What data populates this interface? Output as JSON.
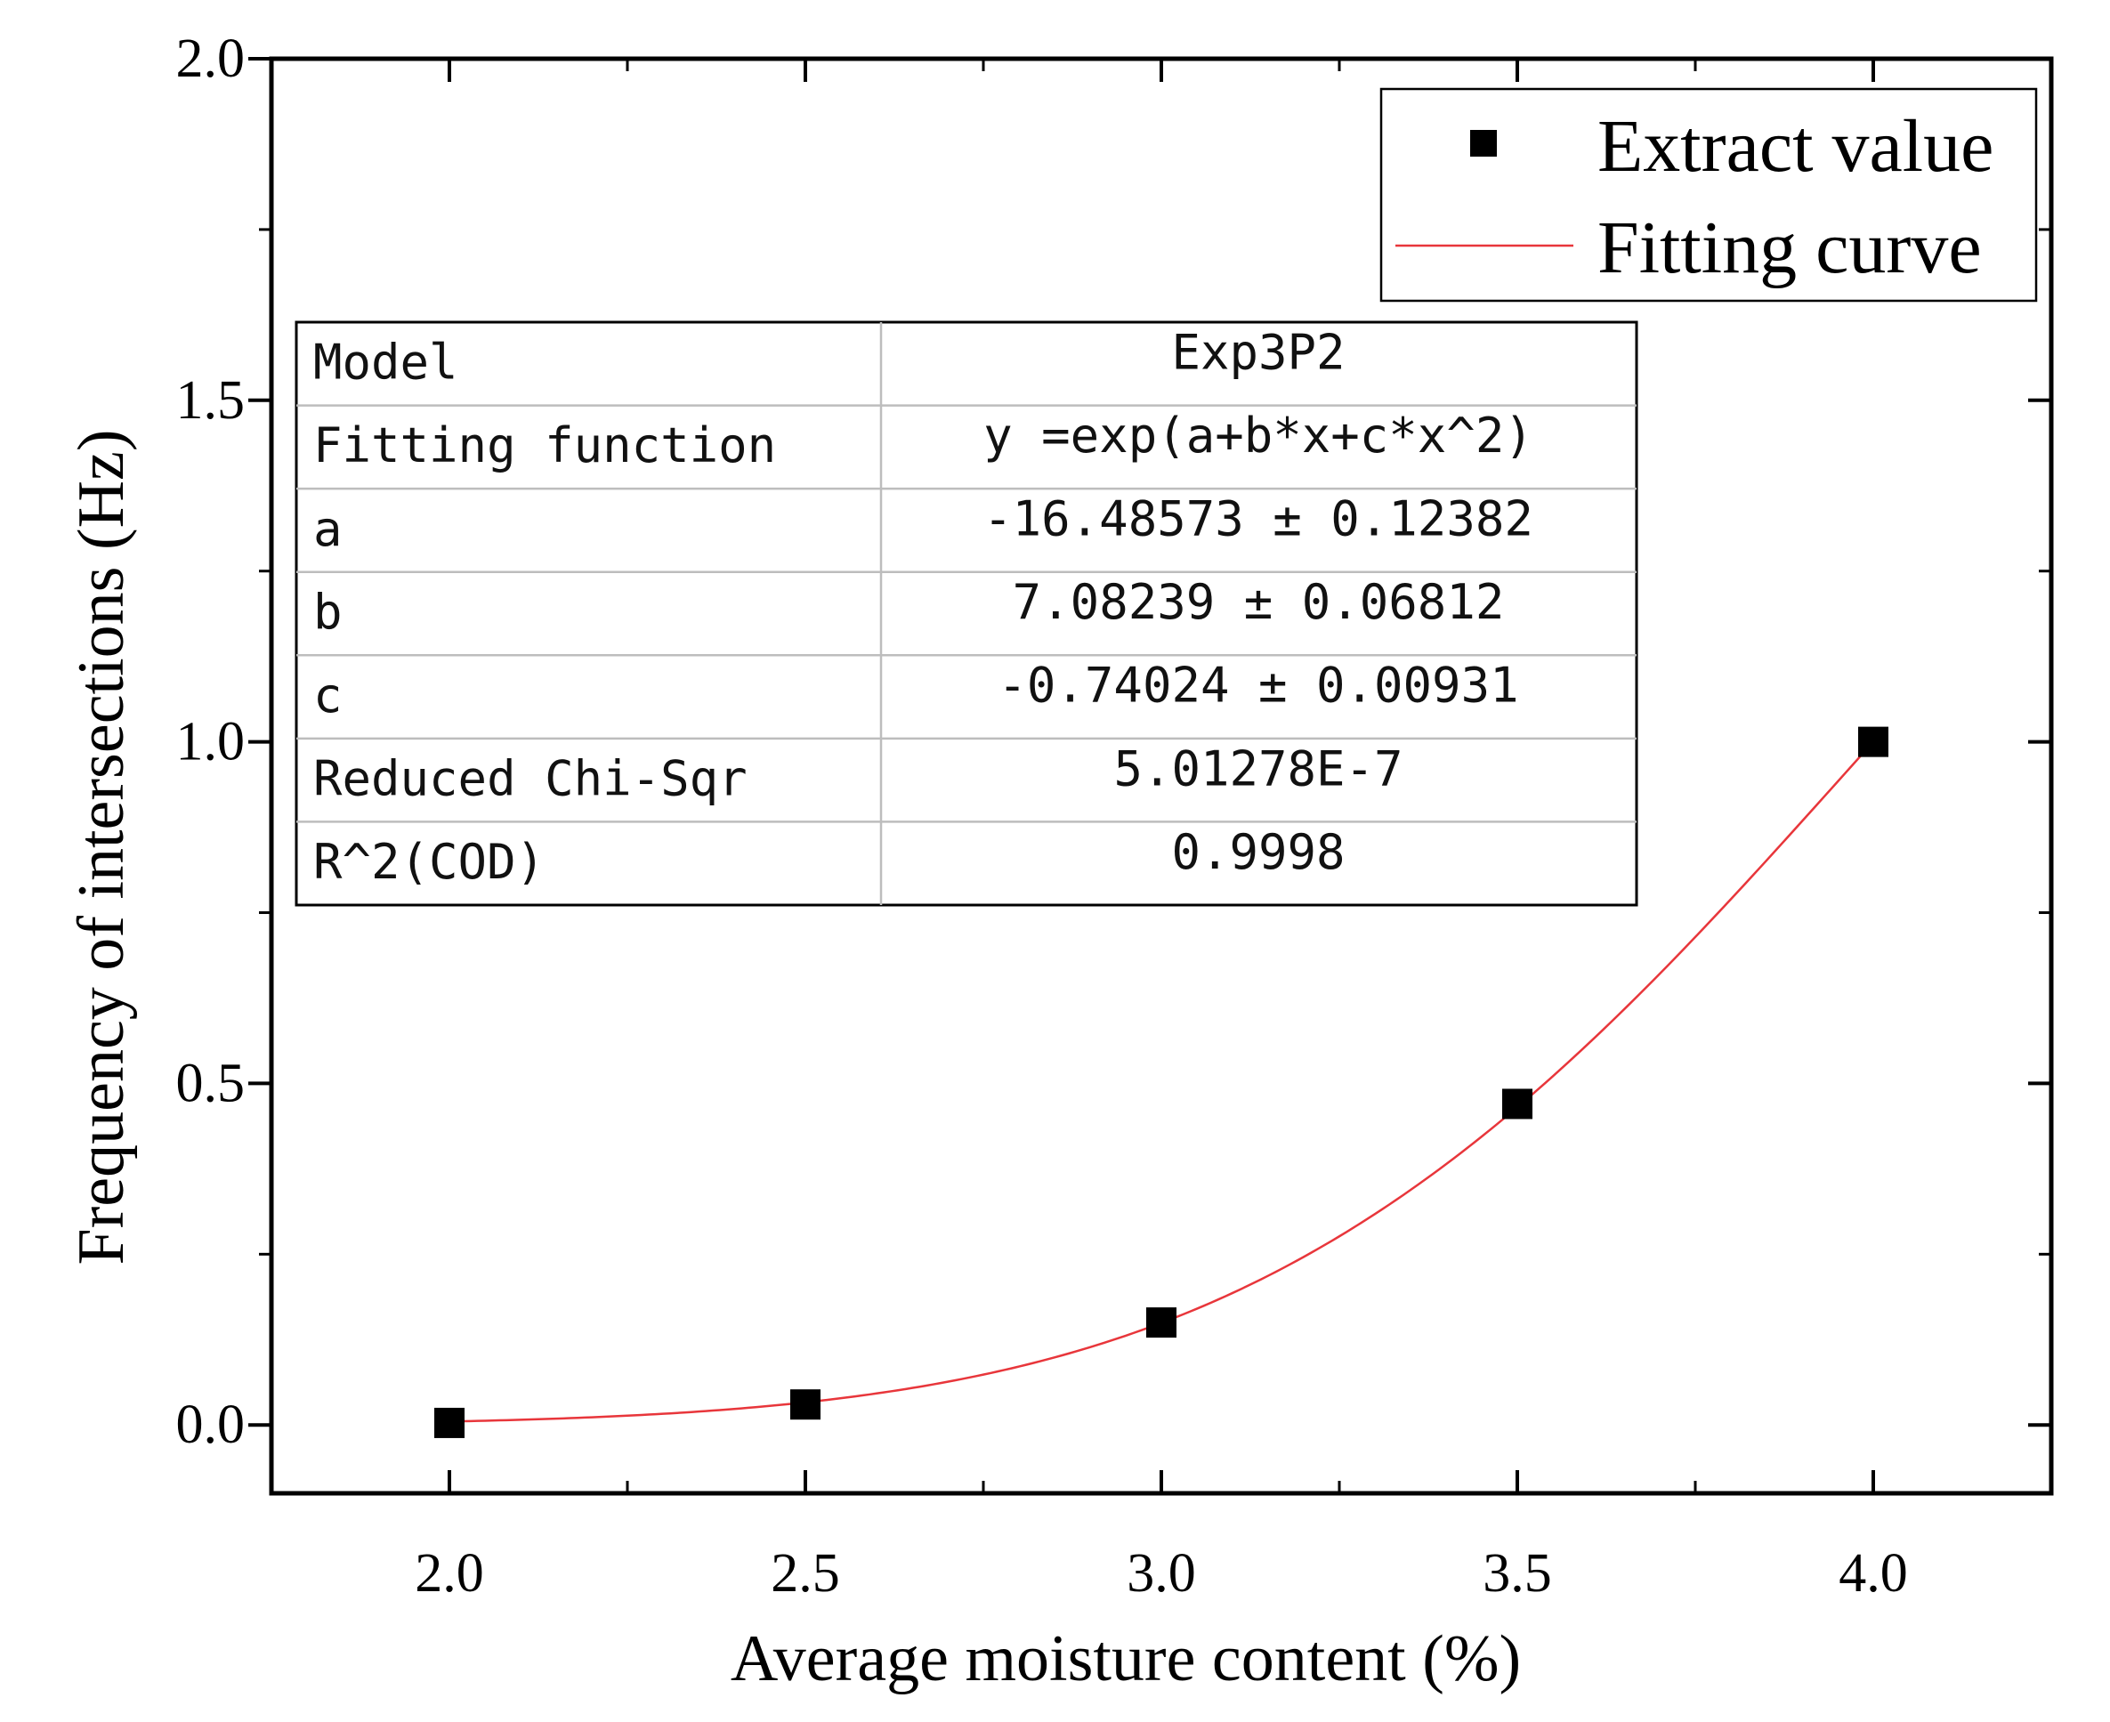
{
  "chart_data": {
    "type": "scatter",
    "xlabel": "Average moisture content (%)",
    "ylabel": "Frequency of intersections (Hz)",
    "xlim": [
      1.75,
      4.25
    ],
    "ylim": [
      -0.1,
      2.0
    ],
    "xticks": [
      2.0,
      2.5,
      3.0,
      3.5,
      4.0
    ],
    "xtick_labels": [
      "2.0",
      "2.5",
      "3.0",
      "3.5",
      "4.0"
    ],
    "yticks": [
      0.0,
      0.5,
      1.0,
      1.5,
      2.0
    ],
    "ytick_labels": [
      "0.0",
      "0.5",
      "1.0",
      "1.5",
      "2.0"
    ],
    "series": [
      {
        "name": "Extract value",
        "kind": "scatter",
        "color": "#000000",
        "x": [
          2.0,
          2.5,
          3.0,
          3.5,
          4.0
        ],
        "y": [
          0.003,
          0.03,
          0.15,
          0.47,
          1.0
        ]
      },
      {
        "name": "Fitting curve",
        "kind": "line",
        "color": "#e8363b",
        "function": "exp(a + b*x + c*x^2)",
        "params": {
          "a": -16.48573,
          "b": 7.08239,
          "c": -0.74024
        },
        "x_range": [
          2.0,
          4.0
        ]
      }
    ],
    "legend": {
      "position": "top-right",
      "entries": [
        "Extract value",
        "Fitting curve"
      ]
    },
    "fit_table": {
      "rows": [
        {
          "label": "Model",
          "value": "Exp3P2"
        },
        {
          "label": "Fitting function",
          "value": "y =exp(a+b*x+c*x^2)"
        },
        {
          "label": "a",
          "value": "-16.48573 ± 0.12382"
        },
        {
          "label": "b",
          "value": "7.08239 ± 0.06812"
        },
        {
          "label": "c",
          "value": "-0.74024 ± 0.00931"
        },
        {
          "label": "Reduced Chi-Sqr",
          "value": "5.01278E-7"
        },
        {
          "label": "R^2(COD)",
          "value": "0.9998"
        }
      ]
    }
  }
}
